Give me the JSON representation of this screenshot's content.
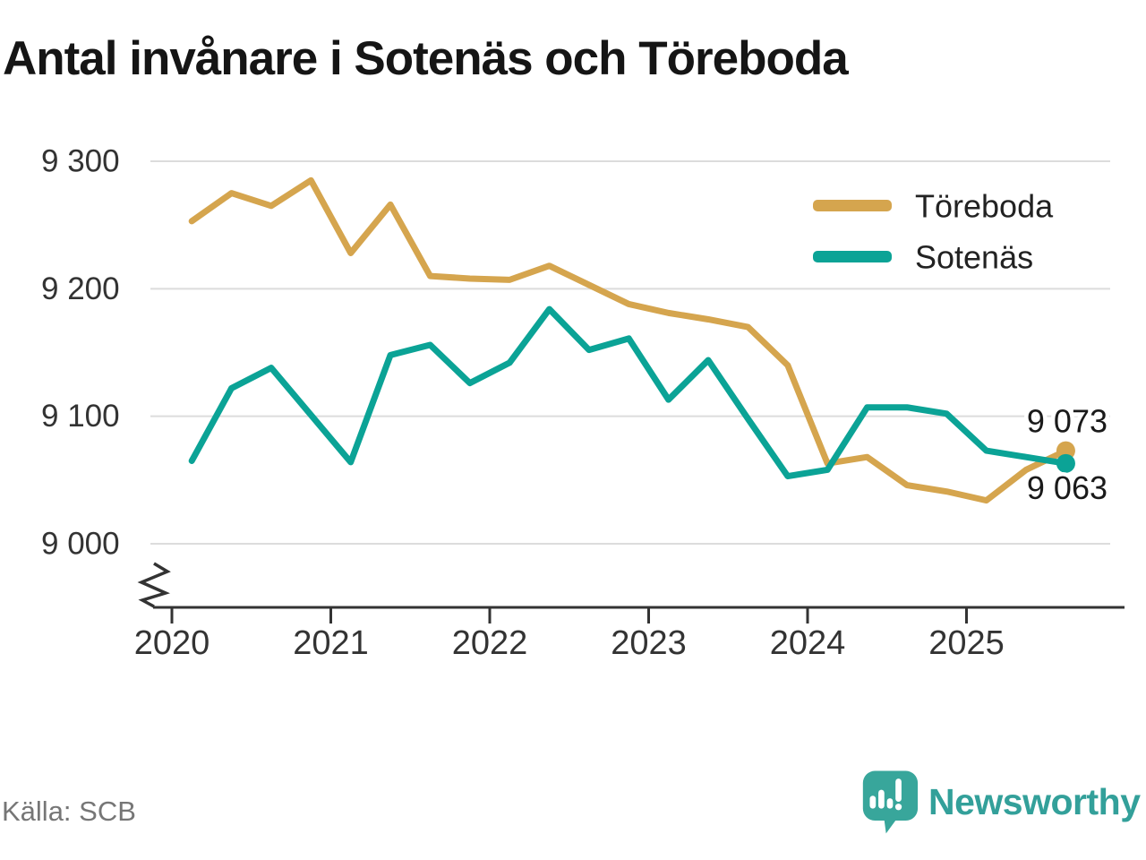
{
  "title": "Antal invånare i Sotenäs och Töreboda",
  "source": "Källa: SCB",
  "branding": {
    "wordmark": "Newsworthy"
  },
  "colors": {
    "toreboda": "#D5A54E",
    "sotenas": "#0BA396",
    "grid": "#DCDCDC",
    "axis": "#333333",
    "tick_text": "#333333",
    "label_text": "#1A1A1A",
    "source_text": "#767676",
    "brand_teal": "#38A69B"
  },
  "chart_data": {
    "type": "line",
    "title": "Antal invånare i Sotenäs och Töreboda",
    "x_cadence": "quarterly",
    "x_start_year": 2020,
    "x_tick_labels": [
      "2020",
      "2021",
      "2022",
      "2023",
      "2024",
      "2025"
    ],
    "y_tick_labels": [
      "9 300",
      "9 200",
      "9 100",
      "9 000"
    ],
    "y_tick_values": [
      9300,
      9200,
      9100,
      9000
    ],
    "ylim": [
      9000,
      9300
    ],
    "axis_break": true,
    "grid": "horizontal",
    "legend_position": "top-right",
    "series": [
      {
        "name": "Töreboda",
        "color": "#D5A54E",
        "end_label": "9 073",
        "values": [
          9253,
          9275,
          9265,
          9285,
          9228,
          9266,
          9210,
          9208,
          9207,
          9218,
          9203,
          9188,
          9181,
          9176,
          9170,
          9140,
          9063,
          9068,
          9046,
          9041,
          9034,
          9058,
          9073
        ]
      },
      {
        "name": "Sotenäs",
        "color": "#0BA396",
        "end_label": "9 063",
        "values": [
          9065,
          9122,
          9138,
          9101,
          9064,
          9148,
          9156,
          9126,
          9142,
          9184,
          9152,
          9161,
          9113,
          9144,
          9098,
          9053,
          9058,
          9107,
          9107,
          9102,
          9073,
          9068,
          9063
        ]
      }
    ]
  }
}
